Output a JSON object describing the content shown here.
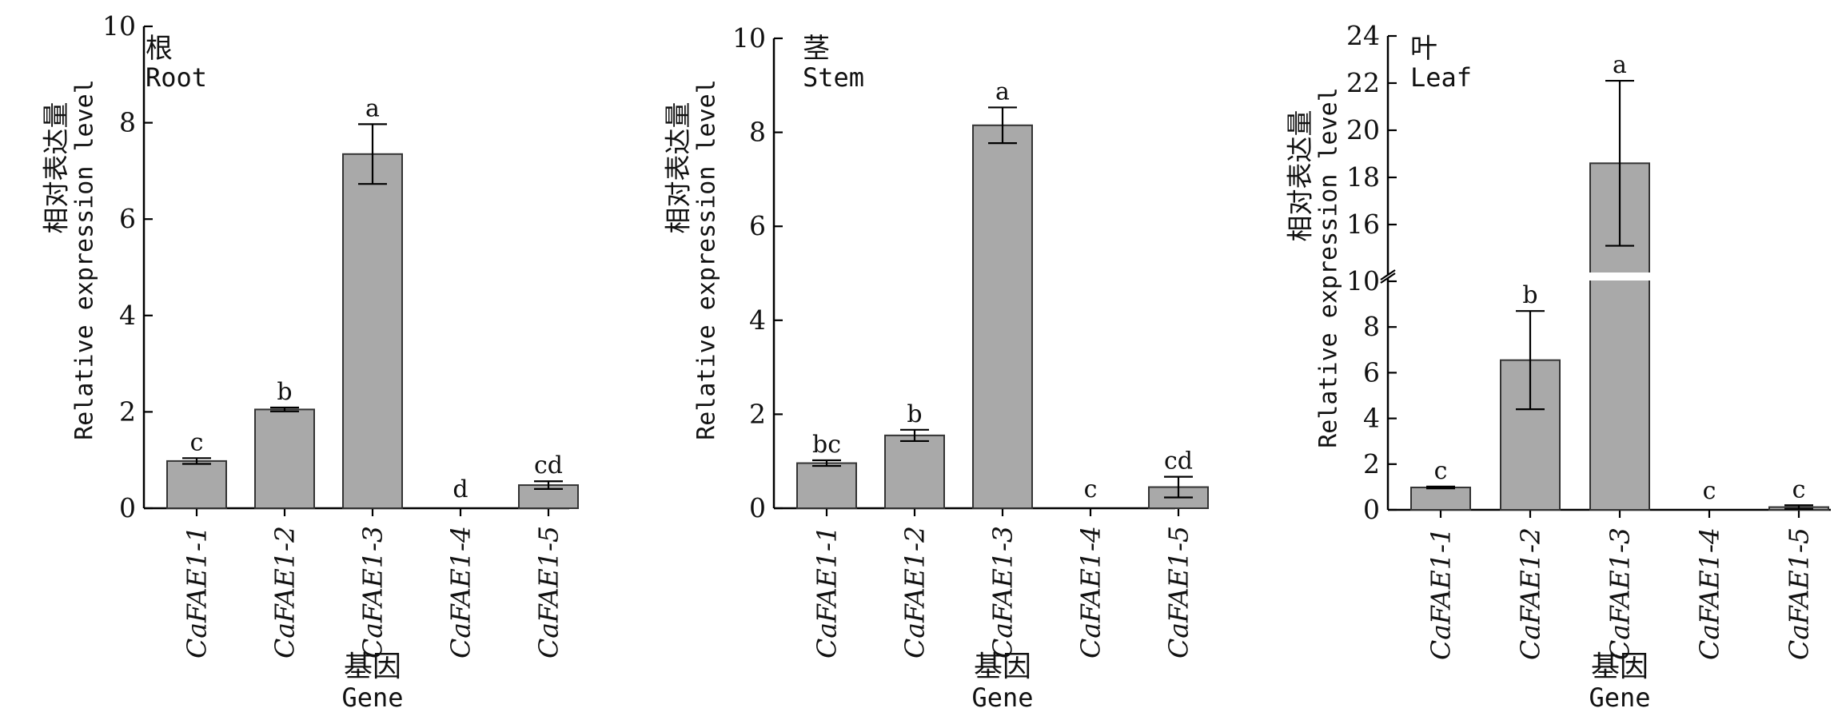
{
  "chart_data": [
    {
      "type": "bar",
      "tissue_zh": "根",
      "tissue_en": "Root",
      "ylabel_zh": "相对表达量",
      "ylabel_en": "Relative expression level",
      "xlabel_zh": "基因",
      "xlabel_en": "Gene",
      "categories": [
        "CaFAE1-1",
        "CaFAE1-2",
        "CaFAE1-3",
        "CaFAE1-4",
        "CaFAE1-5"
      ],
      "values": [
        0.98,
        2.05,
        7.35,
        0.0,
        0.48
      ],
      "errors": [
        0.06,
        0.04,
        0.62,
        0.0,
        0.08
      ],
      "letters": [
        "c",
        "b",
        "a",
        "d",
        "cd"
      ],
      "ylim": [
        0,
        10
      ],
      "yticks": [
        0,
        2,
        4,
        6,
        8,
        10
      ],
      "bar_color": "#a9a9a9"
    },
    {
      "type": "bar",
      "tissue_zh": "茎",
      "tissue_en": "Stem",
      "ylabel_zh": "相对表达量",
      "ylabel_en": "Relative expression level",
      "xlabel_zh": "基因",
      "xlabel_en": "Gene",
      "categories": [
        "CaFAE1-1",
        "CaFAE1-2",
        "CaFAE1-3",
        "CaFAE1-4",
        "CaFAE1-5"
      ],
      "values": [
        0.96,
        1.55,
        8.15,
        0.0,
        0.45
      ],
      "errors": [
        0.06,
        0.12,
        0.38,
        0.0,
        0.22
      ],
      "letters": [
        "bc",
        "b",
        "a",
        "c",
        "cd"
      ],
      "ylim": [
        0,
        10
      ],
      "yticks": [
        0,
        2,
        4,
        6,
        8,
        10
      ],
      "bar_color": "#a9a9a9"
    },
    {
      "type": "bar",
      "tissue_zh": "叶",
      "tissue_en": "Leaf",
      "ylabel_zh": "相对表达量",
      "ylabel_en": "Relative expression level",
      "xlabel_zh": "基因",
      "xlabel_en": "Gene",
      "categories": [
        "CaFAE1-1",
        "CaFAE1-2",
        "CaFAE1-3",
        "CaFAE1-4",
        "CaFAE1-5"
      ],
      "values": [
        0.98,
        6.55,
        18.6,
        0.0,
        0.12
      ],
      "errors": [
        0.04,
        2.15,
        3.5,
        0.0,
        0.08
      ],
      "letters": [
        "c",
        "b",
        "a",
        "c",
        "c"
      ],
      "y_axis_break": {
        "lower": [
          0,
          10
        ],
        "upper": [
          14,
          24
        ]
      },
      "yticks": [
        0,
        2,
        4,
        6,
        8,
        10,
        16,
        18,
        20,
        22,
        24
      ],
      "bar_color": "#a9a9a9"
    }
  ]
}
